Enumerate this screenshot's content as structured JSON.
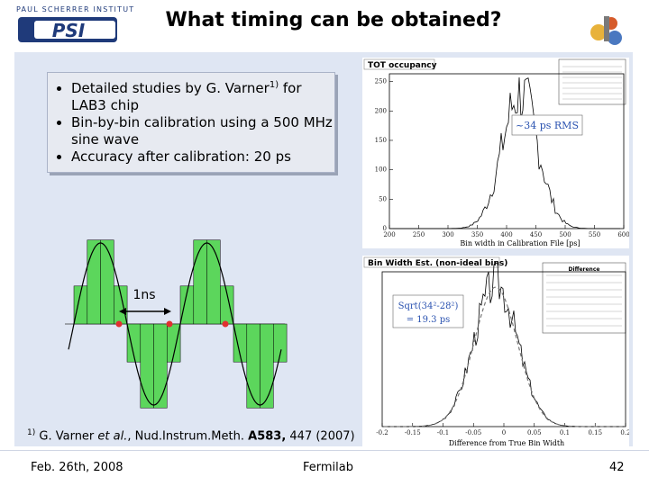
{
  "slide": {
    "title": "What timing can be obtained?",
    "logo_text": "PAUL SCHERRER INSTITUT",
    "logo_mark": "PSI"
  },
  "bullets": [
    {
      "text": "Detailed studies by G. Varner",
      "sup": "1)",
      "after": " for LAB3 chip"
    },
    {
      "text": "Bin-by-bin calibration using a 500 MHz sine wave"
    },
    {
      "text": "Accuracy after calibration: 20 ps"
    }
  ],
  "diagram": {
    "label": "1ns",
    "colors": {
      "bar": "#5cd65c",
      "dot": "#e03030"
    }
  },
  "footnote": {
    "marker": "1)",
    "author": "G. Varner ",
    "etal": "et al.",
    "journal": ", Nud.Instrum.Meth. ",
    "volume": "A583,",
    "rest": " 447 (2007)"
  },
  "footer": {
    "date": "Feb. 26th, 2008",
    "venue": "Fermilab",
    "page": "42"
  },
  "plot_top": {
    "title": "TOT occupancy",
    "annotation": "~34 ps RMS",
    "xlabel": "Bin width in Calibration File [ps]",
    "xticks": [
      "200",
      "250",
      "300",
      "350",
      "400",
      "450",
      "500",
      "550",
      "600"
    ],
    "yticks": [
      "0",
      "50",
      "100",
      "150",
      "200",
      "250"
    ]
  },
  "plot_bottom": {
    "title": "Bin Width Est. (non-ideal bins)",
    "stats_title": "Difference",
    "annotation_line1": "Sqrt(34²-28²)",
    "annotation_line2": "= 19.3 ps",
    "xlabel": "Difference from True Bin Width",
    "xticks": [
      "-0.2",
      "-0.15",
      "-0.1",
      "-0.05",
      "0",
      "0.05",
      "0.1",
      "0.15",
      "0.2"
    ]
  }
}
